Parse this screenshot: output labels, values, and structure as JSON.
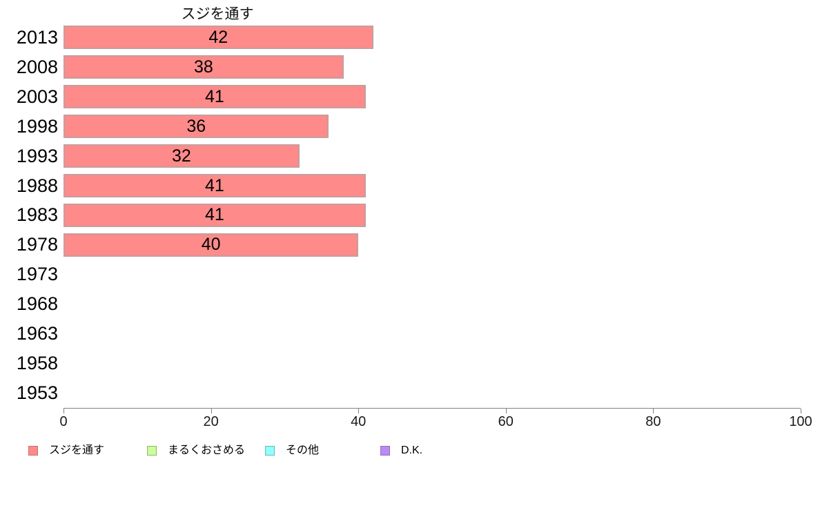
{
  "chart_data": {
    "type": "bar",
    "orientation": "horizontal",
    "title": "スジを通す",
    "categories": [
      "2013",
      "2008",
      "2003",
      "1998",
      "1993",
      "1988",
      "1983",
      "1978",
      "1973",
      "1968",
      "1963",
      "1958",
      "1953"
    ],
    "series": [
      {
        "name": "スジを通す",
        "color": "#ff8a8a",
        "border_color": "#c59e9e",
        "values": [
          42,
          38,
          41,
          36,
          32,
          41,
          41,
          40,
          null,
          null,
          null,
          null,
          null
        ]
      }
    ],
    "xlim": [
      0,
      100
    ],
    "xticks": [
      0,
      20,
      40,
      60,
      80,
      100
    ],
    "grid": false,
    "legend_position": "bottom",
    "legend": [
      {
        "label": "スジを通す",
        "color": "#ff8a8a",
        "border_color": "#c96f6f"
      },
      {
        "label": "まるくおさめる",
        "color": "#ccff99",
        "border_color": "#8fb36b"
      },
      {
        "label": "その他",
        "color": "#90ffff",
        "border_color": "#6cb8b8"
      },
      {
        "label": "D.K.",
        "color": "#b98cf2",
        "border_color": "#8f6cc4"
      }
    ]
  }
}
